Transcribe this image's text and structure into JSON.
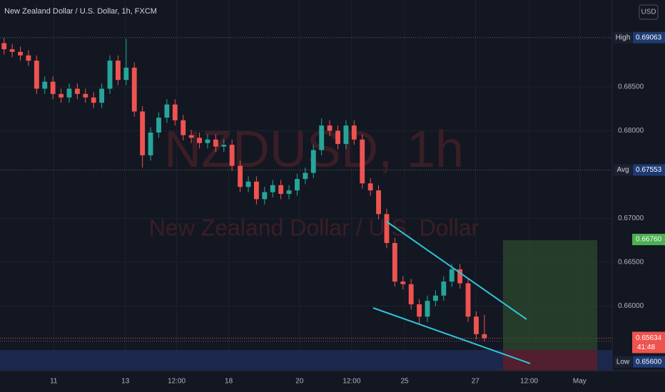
{
  "chart_data": {
    "type": "candlestick",
    "title": "New Zealand Dollar / U.S. Dollar, 1h, FXCM",
    "currency_button": "USD",
    "watermark_symbol": "NZDUSD, 1h",
    "watermark_name": "New Zealand Dollar / U.S. Dollar",
    "up_color": "#26a69a",
    "down_color": "#ef5350",
    "open": [
      0.69,
      0.6893,
      0.689,
      0.6886,
      0.688,
      0.6848,
      0.6856,
      0.6842,
      0.6838,
      0.6848,
      0.6842,
      0.6838,
      0.6832,
      0.6848,
      0.688,
      0.6858,
      0.6872,
      0.6822,
      0.6772,
      0.6798,
      0.6815,
      0.683,
      0.6812,
      0.6795,
      0.6792,
      0.6786,
      0.679,
      0.6782,
      0.6784,
      0.676,
      0.6736,
      0.6742,
      0.6722,
      0.673,
      0.6738,
      0.6728,
      0.6732,
      0.6745,
      0.6752,
      0.6778,
      0.6806,
      0.68,
      0.6785,
      0.6806,
      0.679,
      0.674,
      0.6732,
      0.6705,
      0.6672,
      0.6628,
      0.6625,
      0.6602,
      0.6588,
      0.6606,
      0.6612,
      0.6628,
      0.6642,
      0.6626,
      0.6588,
      0.6568
    ],
    "high": [
      0.6906,
      0.6899,
      0.6896,
      0.6892,
      0.6886,
      0.6862,
      0.6862,
      0.6848,
      0.6854,
      0.6854,
      0.6848,
      0.6844,
      0.6854,
      0.6886,
      0.6886,
      0.6905,
      0.6878,
      0.6828,
      0.6804,
      0.6821,
      0.6836,
      0.6836,
      0.6818,
      0.6801,
      0.6798,
      0.6796,
      0.6796,
      0.679,
      0.679,
      0.6766,
      0.6748,
      0.6748,
      0.6736,
      0.6744,
      0.6744,
      0.6738,
      0.6751,
      0.6758,
      0.6784,
      0.6814,
      0.6812,
      0.6806,
      0.6812,
      0.6812,
      0.6796,
      0.6746,
      0.6738,
      0.6711,
      0.6678,
      0.6634,
      0.6631,
      0.6608,
      0.6612,
      0.6618,
      0.6634,
      0.6648,
      0.6648,
      0.6632,
      0.6594,
      0.659
    ],
    "low": [
      0.6887,
      0.6884,
      0.688,
      0.6874,
      0.6842,
      0.6842,
      0.6836,
      0.6832,
      0.6832,
      0.6836,
      0.6832,
      0.6826,
      0.6826,
      0.6842,
      0.6852,
      0.6852,
      0.6816,
      0.6758,
      0.6766,
      0.6792,
      0.6809,
      0.6806,
      0.6789,
      0.6786,
      0.678,
      0.678,
      0.6776,
      0.6776,
      0.6754,
      0.673,
      0.673,
      0.6716,
      0.6716,
      0.6724,
      0.6722,
      0.6722,
      0.6726,
      0.6739,
      0.6746,
      0.6772,
      0.6794,
      0.6779,
      0.6779,
      0.6784,
      0.6734,
      0.6726,
      0.6699,
      0.6666,
      0.6622,
      0.6619,
      0.6596,
      0.658,
      0.6582,
      0.66,
      0.6606,
      0.6622,
      0.662,
      0.6582,
      0.6562,
      0.656
    ],
    "close": [
      0.6893,
      0.689,
      0.6886,
      0.688,
      0.6848,
      0.6856,
      0.6842,
      0.6838,
      0.6848,
      0.6842,
      0.6838,
      0.6832,
      0.6848,
      0.688,
      0.6858,
      0.6872,
      0.6822,
      0.6772,
      0.6798,
      0.6815,
      0.683,
      0.6812,
      0.6795,
      0.6792,
      0.6786,
      0.679,
      0.6782,
      0.6784,
      0.676,
      0.6736,
      0.6742,
      0.6722,
      0.673,
      0.6738,
      0.6728,
      0.6732,
      0.6745,
      0.6752,
      0.6778,
      0.6806,
      0.68,
      0.6785,
      0.6806,
      0.679,
      0.674,
      0.6732,
      0.6705,
      0.6672,
      0.6628,
      0.6625,
      0.6602,
      0.6588,
      0.6606,
      0.6612,
      0.6628,
      0.6642,
      0.6626,
      0.6588,
      0.6568,
      0.65634
    ],
    "xlim": [
      -0.5,
      74.7
    ],
    "xticks": [
      {
        "value": 6.1,
        "label": "11"
      },
      {
        "value": 14.9,
        "label": "13"
      },
      {
        "value": 21.2,
        "label": "12:00"
      },
      {
        "value": 27.6,
        "label": "18"
      },
      {
        "value": 36.3,
        "label": "20"
      },
      {
        "value": 42.7,
        "label": "12:00"
      },
      {
        "value": 49.2,
        "label": "25"
      },
      {
        "value": 57.9,
        "label": "27"
      },
      {
        "value": 64.5,
        "label": "12:00"
      },
      {
        "value": 70.7,
        "label": "May"
      }
    ],
    "ylim": [
      0.65264,
      0.69492
    ],
    "yticks": [
      {
        "value": 0.685,
        "label": "0.68500"
      },
      {
        "value": 0.68,
        "label": "0.68000"
      },
      {
        "value": 0.67,
        "label": "0.67000"
      },
      {
        "value": 0.665,
        "label": "0.66500"
      },
      {
        "value": 0.66,
        "label": "0.66000"
      }
    ],
    "grid": true,
    "levels": [
      {
        "name": "High",
        "value": 0.69063,
        "label": "0.69063"
      },
      {
        "name": "Avg",
        "value": 0.67553,
        "label": "0.67553"
      },
      {
        "name": "Low",
        "value": 0.656,
        "label": "0.65600"
      }
    ],
    "target": {
      "value": 0.6676,
      "label": "0.66760"
    },
    "last_price": {
      "value": 0.65634,
      "label": "0.65634",
      "countdown": "41:48"
    }
  }
}
